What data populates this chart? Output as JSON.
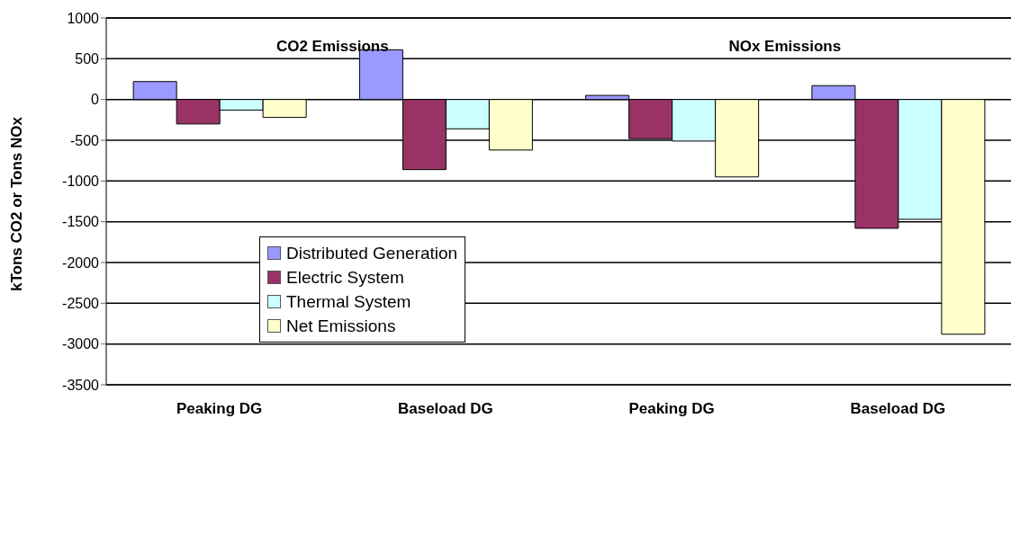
{
  "chart_data": {
    "type": "bar",
    "ylabel": "kTons CO2 or Tons NOx",
    "annotations": [
      "CO2 Emissions",
      "NOx Emissions"
    ],
    "categories": [
      "Peaking DG",
      "Baseload DG",
      "Peaking DG",
      "Baseload DG"
    ],
    "series": [
      {
        "name": "Distributed Generation",
        "color": "#9999ff",
        "values": [
          220,
          610,
          50,
          170
        ]
      },
      {
        "name": "Electric System",
        "color": "#993366",
        "values": [
          -300,
          -860,
          -480,
          -1580
        ]
      },
      {
        "name": "Thermal System",
        "color": "#ccffff",
        "values": [
          -130,
          -360,
          -510,
          -1470
        ]
      },
      {
        "name": "Net Emissions",
        "color": "#ffffcc",
        "values": [
          -220,
          -620,
          -950,
          -2880
        ]
      }
    ],
    "ylim": [
      -3500,
      1000
    ],
    "yticks": [
      -3500,
      -3000,
      -2500,
      -2000,
      -1500,
      -1000,
      -500,
      0,
      500,
      1000
    ],
    "grid": "y",
    "legend": "bottom left"
  }
}
